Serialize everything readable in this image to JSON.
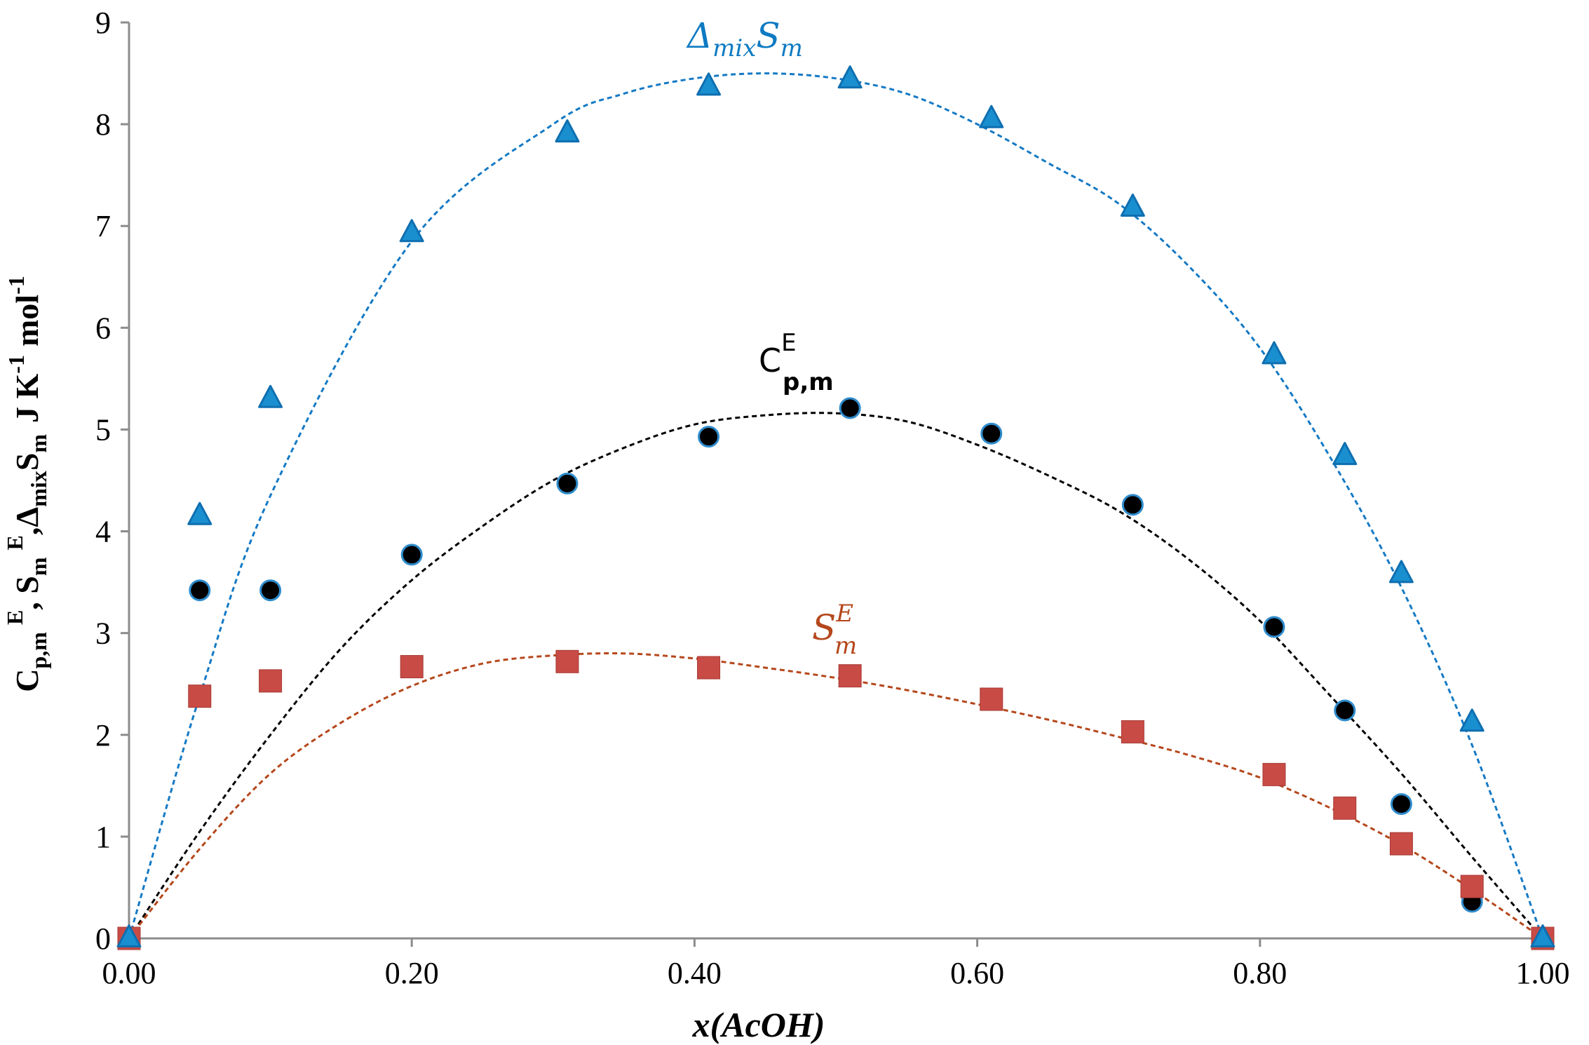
{
  "chart_data": {
    "type": "scatter",
    "title": "",
    "xlabel": "x(AcOH)",
    "ylabel_parts": {
      "c": "C",
      "c_sub": "p,m",
      "c_sup": "E",
      "s": "S",
      "s_sub": "m",
      "s_sup": "E",
      "delta": "Δ",
      "delta_sub": "mix",
      "delta_s": "S",
      "delta_s_sub": "m",
      "units": "J K",
      "units_sup": "-1",
      "units2": "mol",
      "units2_sup": "-1"
    },
    "xlim": [
      0.0,
      1.0
    ],
    "ylim": [
      0,
      9
    ],
    "xticks": [
      "0.00",
      "0.20",
      "0.40",
      "0.60",
      "0.80",
      "1.00"
    ],
    "yticks": [
      "0",
      "1",
      "2",
      "3",
      "4",
      "5",
      "6",
      "7",
      "8",
      "9"
    ],
    "grid": false,
    "series": [
      {
        "name": "Δmix Sm",
        "marker": "triangle",
        "color": "#1a8fd0",
        "edge_color": "#0e6fb0",
        "line_color": "#1479c4",
        "x": [
          0.0,
          0.05,
          0.1,
          0.2,
          0.31,
          0.41,
          0.51,
          0.61,
          0.71,
          0.81,
          0.86,
          0.9,
          0.95,
          1.0
        ],
        "y": [
          0.0,
          4.15,
          5.3,
          6.93,
          7.91,
          8.37,
          8.44,
          8.05,
          7.18,
          5.73,
          4.74,
          3.58,
          2.12,
          0.0
        ],
        "fit": [
          [
            0.0,
            0.0
          ],
          [
            0.05,
            2.38
          ],
          [
            0.1,
            4.35
          ],
          [
            0.2,
            6.85
          ],
          [
            0.3,
            8.0
          ],
          [
            0.35,
            8.3
          ],
          [
            0.4,
            8.45
          ],
          [
            0.45,
            8.5
          ],
          [
            0.5,
            8.45
          ],
          [
            0.55,
            8.3
          ],
          [
            0.6,
            8.0
          ],
          [
            0.65,
            7.62
          ],
          [
            0.7,
            7.22
          ],
          [
            0.75,
            6.6
          ],
          [
            0.8,
            5.8
          ],
          [
            0.85,
            4.72
          ],
          [
            0.9,
            3.45
          ],
          [
            0.95,
            1.9
          ],
          [
            1.0,
            0.0
          ]
        ]
      },
      {
        "name": "Cp,m E",
        "marker": "circle",
        "color": "#000000",
        "edge_color": "#2f8ccc",
        "line_color": "#000000",
        "x": [
          0.0,
          0.05,
          0.1,
          0.2,
          0.31,
          0.41,
          0.51,
          0.61,
          0.71,
          0.81,
          0.86,
          0.9,
          0.95,
          1.0
        ],
        "y": [
          0.0,
          3.42,
          3.42,
          3.77,
          4.47,
          4.93,
          5.21,
          4.96,
          4.26,
          3.06,
          2.24,
          1.32,
          0.36,
          0.0
        ],
        "fit": [
          [
            0.0,
            0.0
          ],
          [
            0.05,
            1.05
          ],
          [
            0.1,
            2.0
          ],
          [
            0.15,
            2.85
          ],
          [
            0.2,
            3.52
          ],
          [
            0.25,
            4.05
          ],
          [
            0.3,
            4.5
          ],
          [
            0.35,
            4.82
          ],
          [
            0.4,
            5.05
          ],
          [
            0.45,
            5.14
          ],
          [
            0.5,
            5.16
          ],
          [
            0.55,
            5.08
          ],
          [
            0.6,
            4.85
          ],
          [
            0.65,
            4.55
          ],
          [
            0.7,
            4.2
          ],
          [
            0.75,
            3.72
          ],
          [
            0.8,
            3.12
          ],
          [
            0.85,
            2.38
          ],
          [
            0.9,
            1.62
          ],
          [
            0.95,
            0.8
          ],
          [
            1.0,
            0.0
          ]
        ]
      },
      {
        "name": "Sm E",
        "marker": "square",
        "color": "#c84b45",
        "edge_color": "#a83a35",
        "line_color": "#b5471c",
        "x": [
          0.0,
          0.05,
          0.1,
          0.2,
          0.31,
          0.41,
          0.51,
          0.61,
          0.71,
          0.81,
          0.86,
          0.9,
          0.95,
          1.0
        ],
        "y": [
          0.0,
          2.38,
          2.53,
          2.67,
          2.72,
          2.66,
          2.58,
          2.35,
          2.03,
          1.61,
          1.28,
          0.93,
          0.51,
          0.0
        ],
        "fit": [
          [
            0.0,
            0.0
          ],
          [
            0.05,
            0.88
          ],
          [
            0.1,
            1.62
          ],
          [
            0.15,
            2.12
          ],
          [
            0.2,
            2.48
          ],
          [
            0.25,
            2.7
          ],
          [
            0.3,
            2.78
          ],
          [
            0.35,
            2.8
          ],
          [
            0.4,
            2.75
          ],
          [
            0.45,
            2.66
          ],
          [
            0.5,
            2.56
          ],
          [
            0.55,
            2.44
          ],
          [
            0.6,
            2.3
          ],
          [
            0.65,
            2.15
          ],
          [
            0.7,
            1.98
          ],
          [
            0.75,
            1.8
          ],
          [
            0.8,
            1.58
          ],
          [
            0.85,
            1.28
          ],
          [
            0.9,
            0.92
          ],
          [
            0.95,
            0.48
          ],
          [
            1.0,
            0.0
          ]
        ]
      }
    ],
    "annotations": {
      "delta": {
        "main": "Δ",
        "sub": "mix",
        "s": "S",
        "s_sub": "m"
      },
      "cpm": {
        "main": "C",
        "sup": "E",
        "sub": "p,m"
      },
      "sme": {
        "main": "S",
        "sup": "E",
        "sub": "m"
      }
    }
  }
}
